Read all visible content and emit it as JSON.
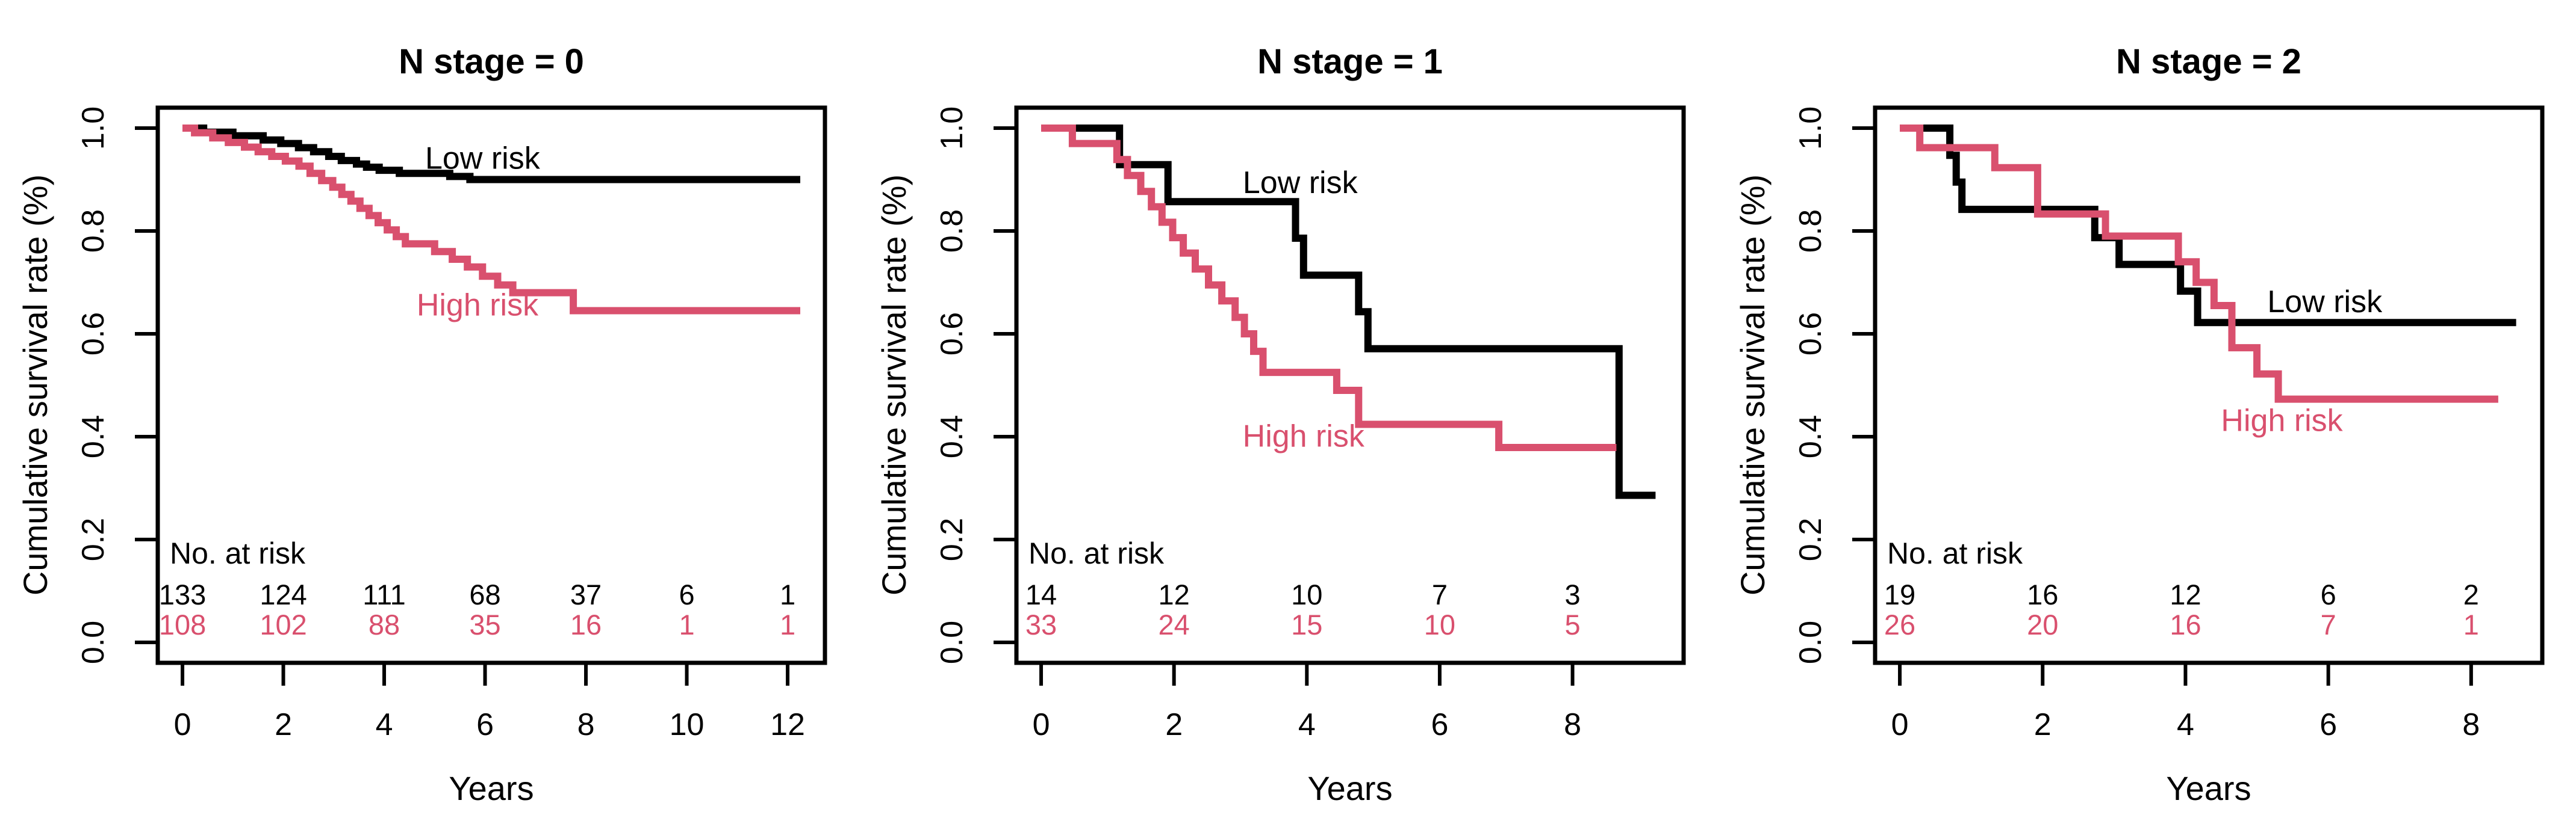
{
  "colors": {
    "low": "#000000",
    "high": "#d9506e",
    "axis": "#000000",
    "background": "#ffffff"
  },
  "axis": {
    "ylabel": "Cumulative survival rate (%)",
    "xlabel": "Years",
    "yticks": [
      "0.0",
      "0.2",
      "0.4",
      "0.6",
      "0.8",
      "1.0"
    ],
    "ytick_values": [
      0.0,
      0.2,
      0.4,
      0.6,
      0.8,
      1.0
    ]
  },
  "risk_heading": "No. at risk",
  "series_labels": {
    "low": "Low risk",
    "high": "High risk"
  },
  "chart_data": [
    {
      "type": "line",
      "title": "N stage = 0",
      "xlabel": "Years",
      "ylabel": "Cumulative survival rate (%)",
      "xlim": [
        0,
        12.25
      ],
      "ylim": [
        0,
        1
      ],
      "xticks": [
        0,
        2,
        4,
        6,
        8,
        10,
        12
      ],
      "series": [
        {
          "name": "Low risk",
          "color_key": "low",
          "start": [
            0,
            1.0
          ],
          "steps": [
            [
              0.42,
              0.992
            ],
            [
              1.0,
              0.985
            ],
            [
              1.6,
              0.977
            ],
            [
              1.95,
              0.97
            ],
            [
              2.3,
              0.962
            ],
            [
              2.6,
              0.954
            ],
            [
              2.9,
              0.945
            ],
            [
              3.15,
              0.937
            ],
            [
              3.45,
              0.93
            ],
            [
              3.65,
              0.924
            ],
            [
              3.9,
              0.918
            ],
            [
              4.3,
              0.912
            ],
            [
              5.3,
              0.906
            ],
            [
              5.7,
              0.9
            ]
          ],
          "end_x": 12.25,
          "label_pos": [
            5.95,
            0.942
          ]
        },
        {
          "name": "High risk",
          "color_key": "high",
          "start": [
            0,
            1.0
          ],
          "steps": [
            [
              0.24,
              0.991
            ],
            [
              0.6,
              0.981
            ],
            [
              0.91,
              0.972
            ],
            [
              1.23,
              0.963
            ],
            [
              1.5,
              0.954
            ],
            [
              1.77,
              0.945
            ],
            [
              2.04,
              0.936
            ],
            [
              2.31,
              0.926
            ],
            [
              2.53,
              0.912
            ],
            [
              2.76,
              0.898
            ],
            [
              2.98,
              0.885
            ],
            [
              3.16,
              0.871
            ],
            [
              3.34,
              0.858
            ],
            [
              3.52,
              0.844
            ],
            [
              3.7,
              0.83
            ],
            [
              3.88,
              0.816
            ],
            [
              4.06,
              0.802
            ],
            [
              4.24,
              0.789
            ],
            [
              4.42,
              0.775
            ],
            [
              5.0,
              0.76
            ],
            [
              5.35,
              0.745
            ],
            [
              5.65,
              0.73
            ],
            [
              5.95,
              0.712
            ],
            [
              6.25,
              0.695
            ],
            [
              6.55,
              0.68
            ],
            [
              7.75,
              0.645
            ]
          ],
          "end_x": 12.25,
          "label_pos": [
            5.85,
            0.657
          ]
        }
      ],
      "risk_table": {
        "times": [
          0,
          2,
          4,
          6,
          8,
          10,
          12
        ],
        "rows": [
          {
            "name": "Low risk",
            "color_key": "low",
            "values": [
              "133",
              "124",
              "111",
              "68",
              "37",
              "6",
              "1"
            ]
          },
          {
            "name": "High risk",
            "color_key": "high",
            "values": [
              "108",
              "102",
              "88",
              "35",
              "16",
              "1",
              "1"
            ]
          }
        ]
      }
    },
    {
      "type": "line",
      "title": "N stage = 1",
      "xlabel": "Years",
      "ylabel": "Cumulative survival rate (%)",
      "xlim": [
        0,
        9.3
      ],
      "ylim": [
        0,
        1
      ],
      "xticks": [
        0,
        2,
        4,
        6,
        8
      ],
      "series": [
        {
          "name": "Low risk",
          "color_key": "low",
          "start": [
            0,
            1.0
          ],
          "steps": [
            [
              1.18,
              0.929
            ],
            [
              1.91,
              0.857
            ],
            [
              3.83,
              0.786
            ],
            [
              3.95,
              0.714
            ],
            [
              4.78,
              0.643
            ],
            [
              4.92,
              0.571
            ],
            [
              8.7,
              0.286
            ]
          ],
          "end_x": 9.25,
          "label_pos": [
            3.9,
            0.895
          ]
        },
        {
          "name": "High risk",
          "color_key": "high",
          "start": [
            0,
            1.0
          ],
          "steps": [
            [
              0.47,
              0.97
            ],
            [
              1.14,
              0.939
            ],
            [
              1.3,
              0.908
            ],
            [
              1.5,
              0.877
            ],
            [
              1.66,
              0.847
            ],
            [
              1.82,
              0.817
            ],
            [
              1.98,
              0.787
            ],
            [
              2.14,
              0.757
            ],
            [
              2.32,
              0.726
            ],
            [
              2.52,
              0.695
            ],
            [
              2.72,
              0.664
            ],
            [
              2.92,
              0.632
            ],
            [
              3.06,
              0.6
            ],
            [
              3.2,
              0.566
            ],
            [
              3.34,
              0.525
            ],
            [
              4.45,
              0.49
            ],
            [
              4.78,
              0.424
            ],
            [
              6.89,
              0.379
            ]
          ],
          "end_x": 8.66,
          "label_pos": [
            3.95,
            0.402
          ]
        }
      ],
      "risk_table": {
        "times": [
          0,
          2,
          4,
          6,
          8
        ],
        "rows": [
          {
            "name": "Low risk",
            "color_key": "low",
            "values": [
              "14",
              "12",
              "10",
              "7",
              "3"
            ]
          },
          {
            "name": "High risk",
            "color_key": "high",
            "values": [
              "33",
              "24",
              "15",
              "10",
              "5"
            ]
          }
        ]
      }
    },
    {
      "type": "line",
      "title": "N stage = 2",
      "xlabel": "Years",
      "ylabel": "Cumulative survival rate (%)",
      "xlim": [
        0,
        8.65
      ],
      "ylim": [
        0,
        1
      ],
      "xticks": [
        0,
        2,
        4,
        6,
        8
      ],
      "series": [
        {
          "name": "Low risk",
          "color_key": "low",
          "start": [
            0,
            1.0
          ],
          "steps": [
            [
              0.7,
              0.947
            ],
            [
              0.79,
              0.895
            ],
            [
              0.87,
              0.842
            ],
            [
              2.73,
              0.787
            ],
            [
              3.07,
              0.735
            ],
            [
              3.93,
              0.683
            ],
            [
              4.17,
              0.622
            ]
          ],
          "end_x": 8.63,
          "label_pos": [
            5.95,
            0.663
          ]
        },
        {
          "name": "High risk",
          "color_key": "high",
          "start": [
            0,
            1.0
          ],
          "steps": [
            [
              0.28,
              0.962
            ],
            [
              1.33,
              0.923
            ],
            [
              1.93,
              0.833
            ],
            [
              2.88,
              0.79
            ],
            [
              3.9,
              0.74
            ],
            [
              4.15,
              0.7
            ],
            [
              4.4,
              0.655
            ],
            [
              4.65,
              0.573
            ],
            [
              5.0,
              0.522
            ],
            [
              5.3,
              0.473
            ]
          ],
          "end_x": 8.38,
          "label_pos": [
            5.35,
            0.432
          ]
        }
      ],
      "risk_table": {
        "times": [
          0,
          2,
          4,
          6,
          8
        ],
        "rows": [
          {
            "name": "Low risk",
            "color_key": "low",
            "values": [
              "19",
              "16",
              "12",
              "6",
              "2"
            ]
          },
          {
            "name": "High risk",
            "color_key": "high",
            "values": [
              "26",
              "20",
              "16",
              "7",
              "1"
            ]
          }
        ]
      }
    }
  ]
}
